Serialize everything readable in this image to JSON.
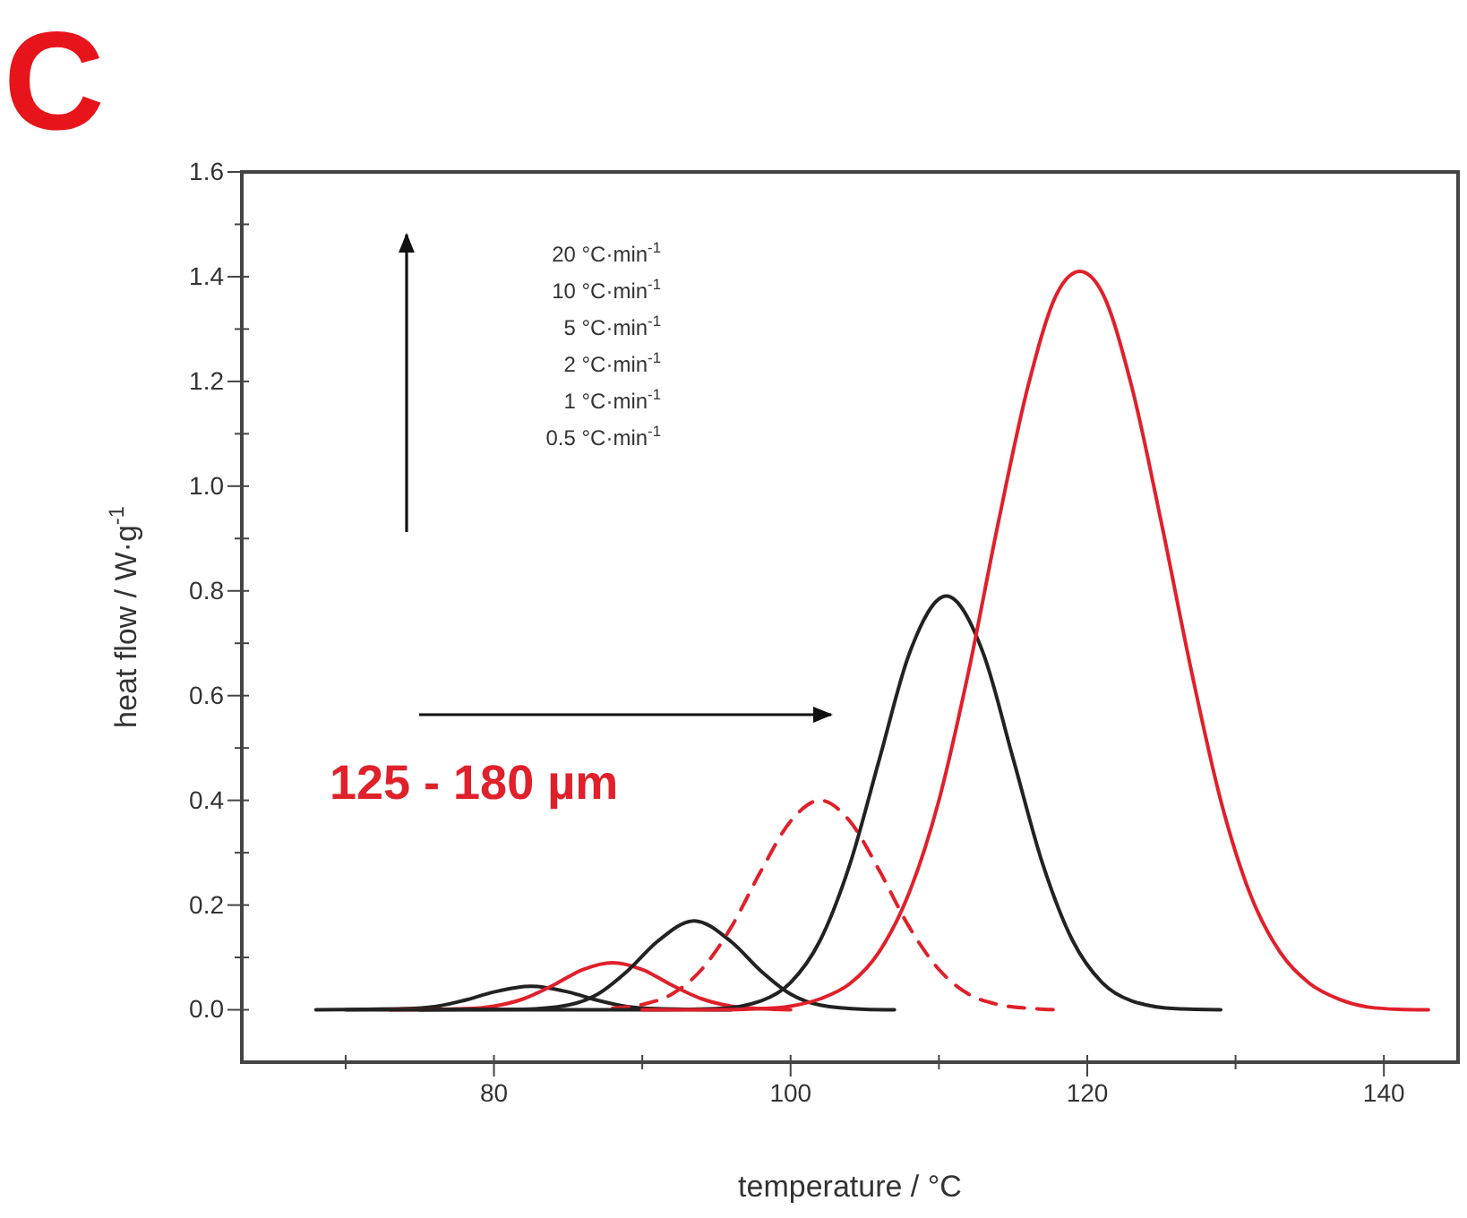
{
  "chart_data": {
    "type": "line",
    "title": "C",
    "xlabel": "temperature  /  °C",
    "ylabel": "heat flow  /  W·g$^{-1}$",
    "xlim": [
      63,
      145
    ],
    "ylim": [
      -0.1,
      1.6
    ],
    "xticks": [
      {
        "value": 70,
        "label": null
      },
      80,
      {
        "value": 90,
        "label": null
      },
      100,
      {
        "value": 110,
        "label": null
      },
      120,
      {
        "value": 130,
        "label": null
      },
      140
    ],
    "yticks": [
      "0.0",
      {
        "value": 0.1,
        "label": null
      },
      0.2,
      {
        "value": 0.3,
        "label": null
      },
      0.4,
      {
        "value": 0.5,
        "label": null
      },
      0.6,
      {
        "value": 0.7,
        "label": null
      },
      0.8,
      {
        "value": 0.9,
        "label": null
      },
      "1.0",
      {
        "value": 1.1,
        "label": null
      },
      1.2,
      {
        "value": 1.3,
        "label": null
      },
      1.4,
      {
        "value": 1.5,
        "label": null
      },
      1.6
    ],
    "grid": false,
    "marker": "none",
    "series": [
      {
        "color": "#222222",
        "line_style": "solid",
        "x": [
          68,
          74,
          76,
          78,
          80,
          82.5,
          85,
          87,
          89,
          91,
          96
        ],
        "values": [
          0,
          0.002,
          0.006,
          0.018,
          0.034,
          0.045,
          0.034,
          0.018,
          0.006,
          0.002,
          0
        ]
      },
      {
        "color": "#e0202a",
        "line_style": "solid",
        "x": [
          73,
          78,
          80,
          82,
          84,
          86,
          88,
          90,
          92,
          94,
          96,
          98,
          100
        ],
        "values": [
          0,
          0.002,
          0.007,
          0.021,
          0.047,
          0.077,
          0.09,
          0.077,
          0.047,
          0.021,
          0.007,
          0.002,
          0
        ]
      },
      {
        "color": "#222222",
        "line_style": "solid",
        "x": [
          75,
          82,
          85,
          87,
          89,
          91,
          93.5,
          96,
          98,
          100,
          102,
          105,
          107
        ],
        "values": [
          0,
          0.001,
          0.009,
          0.03,
          0.074,
          0.13,
          0.17,
          0.13,
          0.074,
          0.03,
          0.009,
          0.001,
          0
        ]
      },
      {
        "color": "#e0202a",
        "line_style": "dashed",
        "x": [
          88,
          90,
          92,
          94,
          96,
          98,
          100,
          102,
          104,
          106,
          108,
          110,
          112,
          114,
          116,
          118
        ],
        "values": [
          0.003,
          0.01,
          0.03,
          0.077,
          0.158,
          0.265,
          0.36,
          0.4,
          0.36,
          0.265,
          0.158,
          0.077,
          0.03,
          0.01,
          0.003,
          0
        ]
      },
      {
        "color": "#222222",
        "line_style": "solid",
        "x": [
          70,
          90,
          95,
          98,
          100,
          102,
          104,
          106,
          108,
          110.5,
          113,
          115,
          117,
          119,
          121,
          123,
          126,
          129
        ],
        "values": [
          0,
          0,
          0.002,
          0.017,
          0.052,
          0.133,
          0.278,
          0.48,
          0.68,
          0.79,
          0.68,
          0.48,
          0.278,
          0.133,
          0.052,
          0.017,
          0.002,
          0
        ]
      },
      {
        "color": "#e0202a",
        "line_style": "solid",
        "x": [
          90,
          95,
          98,
          100,
          102,
          104,
          106,
          108,
          110,
          112,
          114,
          116,
          118,
          119.5,
          121,
          123,
          125,
          127,
          129,
          131,
          133,
          135,
          137,
          139,
          141,
          143
        ],
        "values": [
          0,
          0,
          0.002,
          0.007,
          0.021,
          0.05,
          0.112,
          0.224,
          0.4,
          0.646,
          0.93,
          1.19,
          1.37,
          1.41,
          1.37,
          1.19,
          0.93,
          0.65,
          0.4,
          0.22,
          0.11,
          0.05,
          0.02,
          0.005,
          0.001,
          0
        ]
      }
    ],
    "annotations": [
      "20 °C·min$^{-1}$",
      "10 °C·min$^{-1}$",
      "5 °C·min$^{-1}$",
      "2 °C·min$^{-1}$",
      "1 °C·min$^{-1}$",
      "0.5 °C·min$^{-1}$",
      "125 - 180 µm"
    ]
  }
}
